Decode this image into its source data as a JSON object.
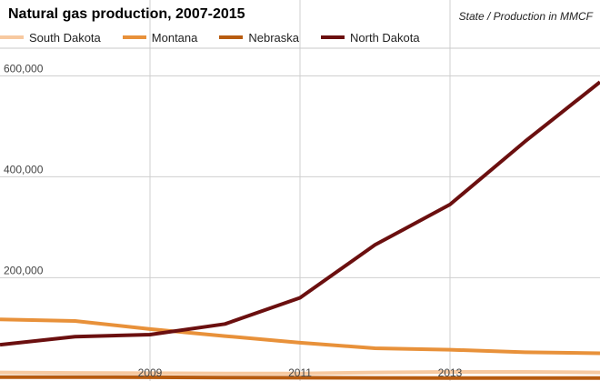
{
  "chart_data": {
    "type": "line",
    "title": "Natural gas production, 2007-2015",
    "subtitle": "State / Production in MMCF",
    "xlabel": "",
    "ylabel": "",
    "x": [
      2007,
      2008,
      2009,
      2010,
      2011,
      2012,
      2013,
      2014,
      2015
    ],
    "xlim": [
      2007,
      2015
    ],
    "ylim": [
      -5000,
      655000
    ],
    "x_ticks": [
      "2009",
      "2011",
      "2013"
    ],
    "y_ticks": [
      "200,000",
      "400,000",
      "600,000"
    ],
    "grid": true,
    "legend_position": "top",
    "series": [
      {
        "name": "South Dakota",
        "color": "#f7c9a0",
        "values": [
          12000,
          11000,
          10500,
          10000,
          10000,
          12000,
          13000,
          13000,
          12000
        ]
      },
      {
        "name": "Montana",
        "color": "#e8913a",
        "values": [
          117000,
          114000,
          98000,
          84000,
          71000,
          60000,
          57000,
          52000,
          50000
        ]
      },
      {
        "name": "Nebraska",
        "color": "#b85c10",
        "values": [
          2500,
          2800,
          2400,
          1800,
          1500,
          1200,
          1000,
          900,
          800
        ]
      },
      {
        "name": "North Dakota",
        "color": "#6b0f0f",
        "values": [
          67000,
          83000,
          87000,
          108000,
          160000,
          265000,
          345000,
          470000,
          588000
        ]
      }
    ]
  }
}
